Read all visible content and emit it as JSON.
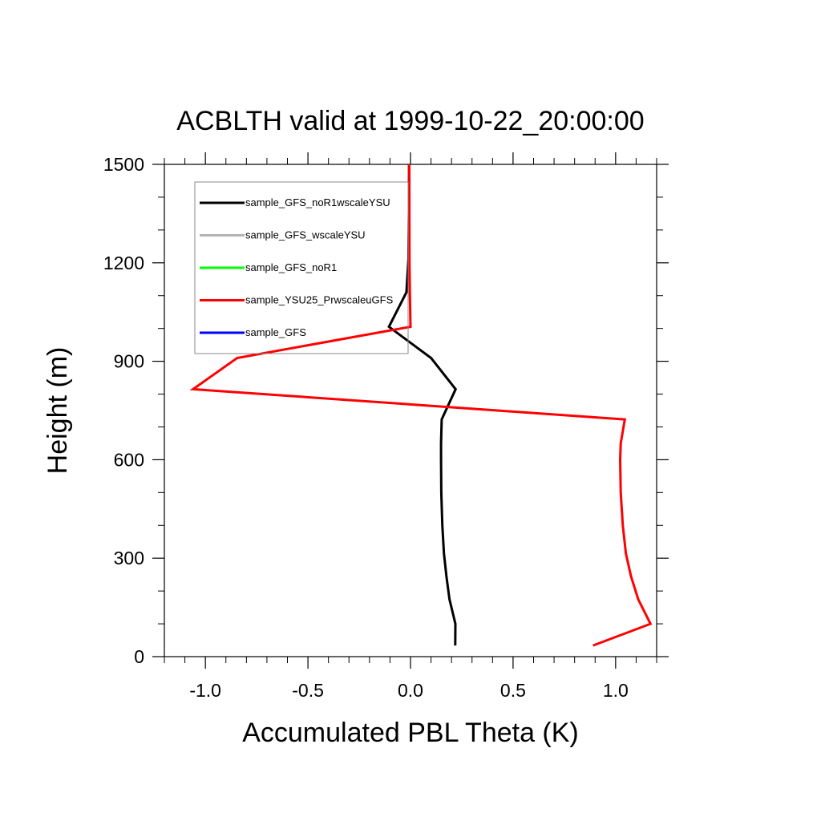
{
  "chart_data": {
    "type": "line",
    "title": "ACBLTH valid at 1999-10-22_20:00:00",
    "xlabel": "Accumulated PBL Theta (K)",
    "ylabel": "Height (m)",
    "xlim": [
      -1.2,
      1.2
    ],
    "ylim": [
      0,
      1500
    ],
    "xticks": [
      -1.0,
      -0.5,
      0.0,
      0.5,
      1.0
    ],
    "xtick_labels": [
      "-1.0",
      "-0.5",
      "0.0",
      "0.5",
      "1.0"
    ],
    "yticks": [
      0,
      300,
      600,
      900,
      1200,
      1500
    ],
    "ytick_labels": [
      "0",
      "300",
      "600",
      "900",
      "1200",
      "1500"
    ],
    "grid": false,
    "legend_position": "top-left",
    "series": [
      {
        "name": "sample_GFS_noR1wscaleYSU",
        "color": "#000000",
        "x": [
          0.218,
          0.219,
          0.19,
          0.175,
          0.163,
          0.155,
          0.15,
          0.149,
          0.149,
          0.152,
          0.22,
          0.1,
          -0.105,
          -0.02,
          -0.01,
          -0.008,
          -0.007
        ],
        "y": [
          34,
          100,
          175,
          245,
          315,
          400,
          500,
          600,
          650,
          723,
          815,
          910,
          1005,
          1110,
          1210,
          1360,
          1500
        ]
      },
      {
        "name": "sample_GFS_wscaleYSU",
        "color": "#b4b4b4",
        "x": [],
        "y": []
      },
      {
        "name": "sample_GFS_noR1",
        "color": "#00ff00",
        "x": [],
        "y": []
      },
      {
        "name": "sample_YSU25_PrwscaleuGFS",
        "color": "#ff0000",
        "x": [
          0.89,
          1.17,
          1.11,
          1.075,
          1.05,
          1.035,
          1.025,
          1.022,
          1.025,
          1.045,
          -1.06,
          -0.845,
          0.0,
          -0.003,
          -0.005,
          -0.006
        ],
        "y": [
          34,
          100,
          175,
          245,
          315,
          400,
          500,
          600,
          650,
          723,
          815,
          910,
          1005,
          1110,
          1210,
          1500
        ]
      },
      {
        "name": "sample_GFS",
        "color": "#0000ff",
        "x": [],
        "y": []
      }
    ]
  }
}
